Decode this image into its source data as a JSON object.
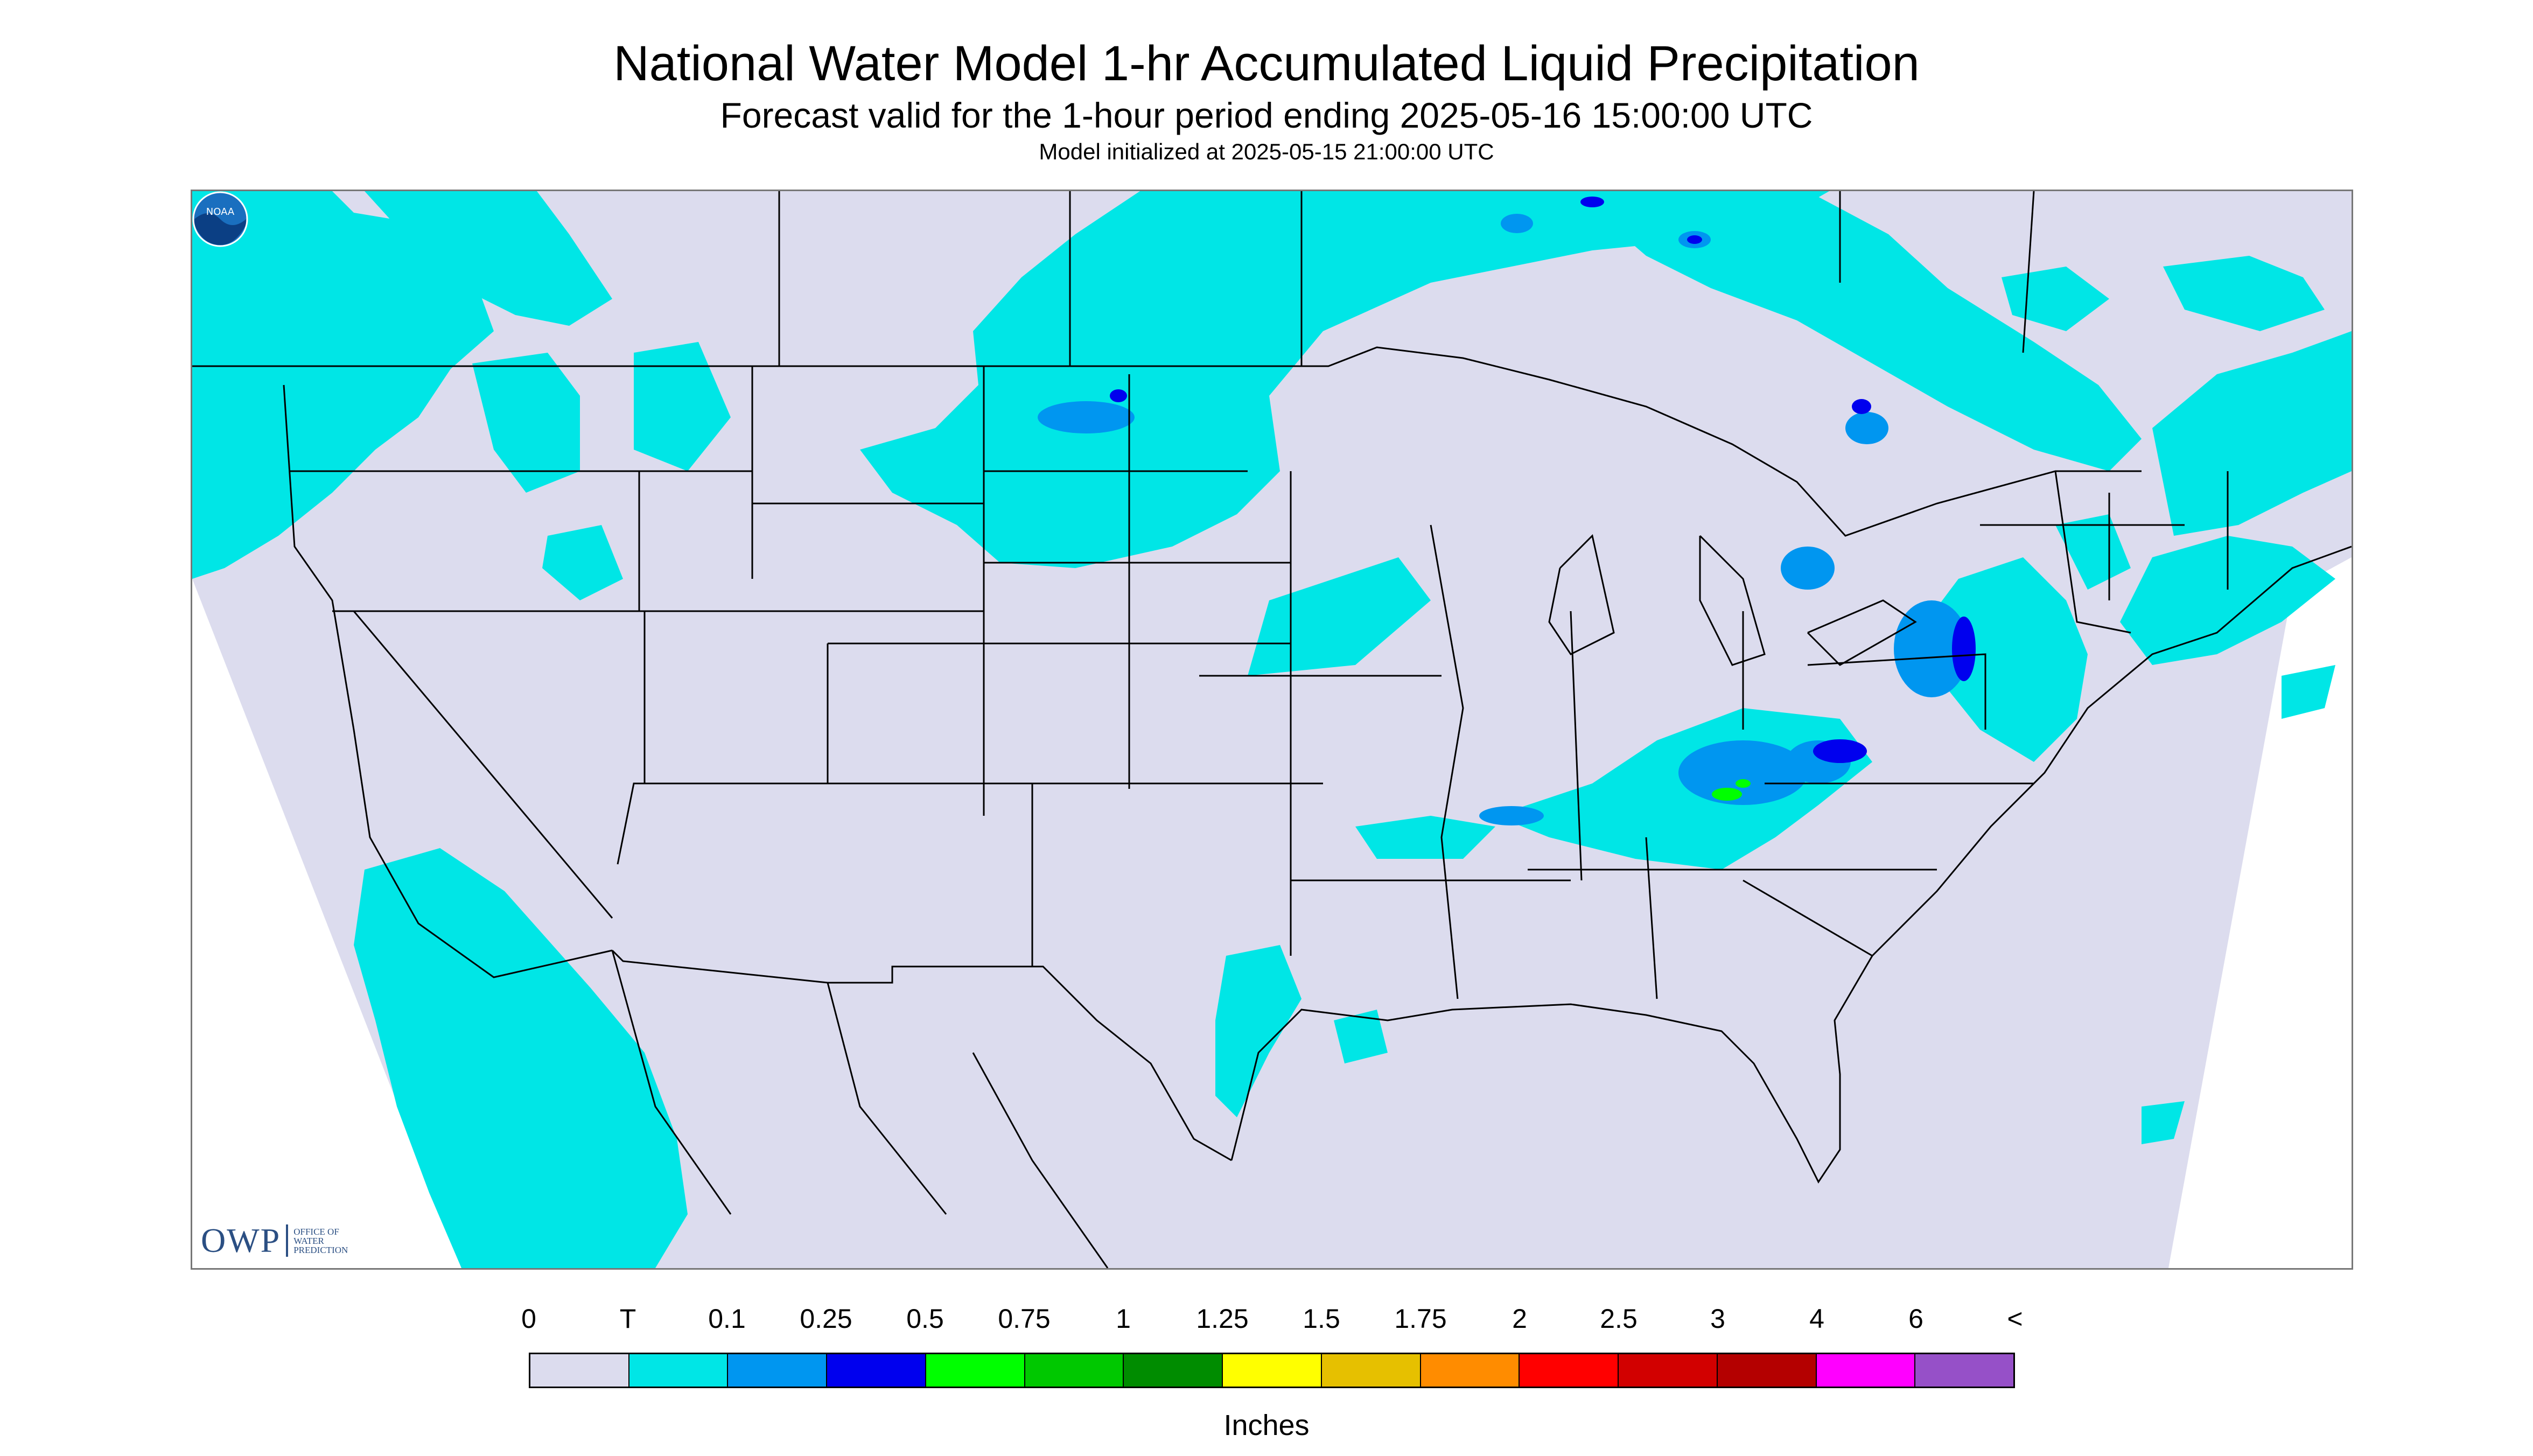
{
  "title": "National Water Model 1-hr Accumulated Liquid Precipitation",
  "subtitle": "Forecast valid for the 1-hour period ending 2025-05-16 15:00:00 UTC",
  "init_line": "Model initialized at 2025-05-15 21:00:00 UTC",
  "logos": {
    "owp_letters": "OWP",
    "owp_text": [
      "OFFICE OF",
      "WATER",
      "PREDICTION"
    ],
    "noaa_text": "NOAA"
  },
  "legend": {
    "labels": [
      "0",
      "T",
      "0.1",
      "0.25",
      "0.5",
      "0.75",
      "1",
      "1.25",
      "1.5",
      "1.75",
      "2",
      "2.5",
      "3",
      "4",
      "6",
      "<"
    ],
    "colors": [
      "#dcdcee",
      "#00e6e6",
      "#0096f0",
      "#0000ee",
      "#00ff00",
      "#00c800",
      "#008c00",
      "#ffff00",
      "#e6c000",
      "#ff8c00",
      "#ff0000",
      "#d20000",
      "#b40000",
      "#ff00ff",
      "#9650c8"
    ],
    "units": "Inches"
  },
  "colors": {
    "no_precip": "#dcdcee",
    "trace": "#00e6e6",
    "light": "#0096f0",
    "moderate": "#0000ee",
    "green": "#00ff00",
    "boundary": "#000000"
  }
}
